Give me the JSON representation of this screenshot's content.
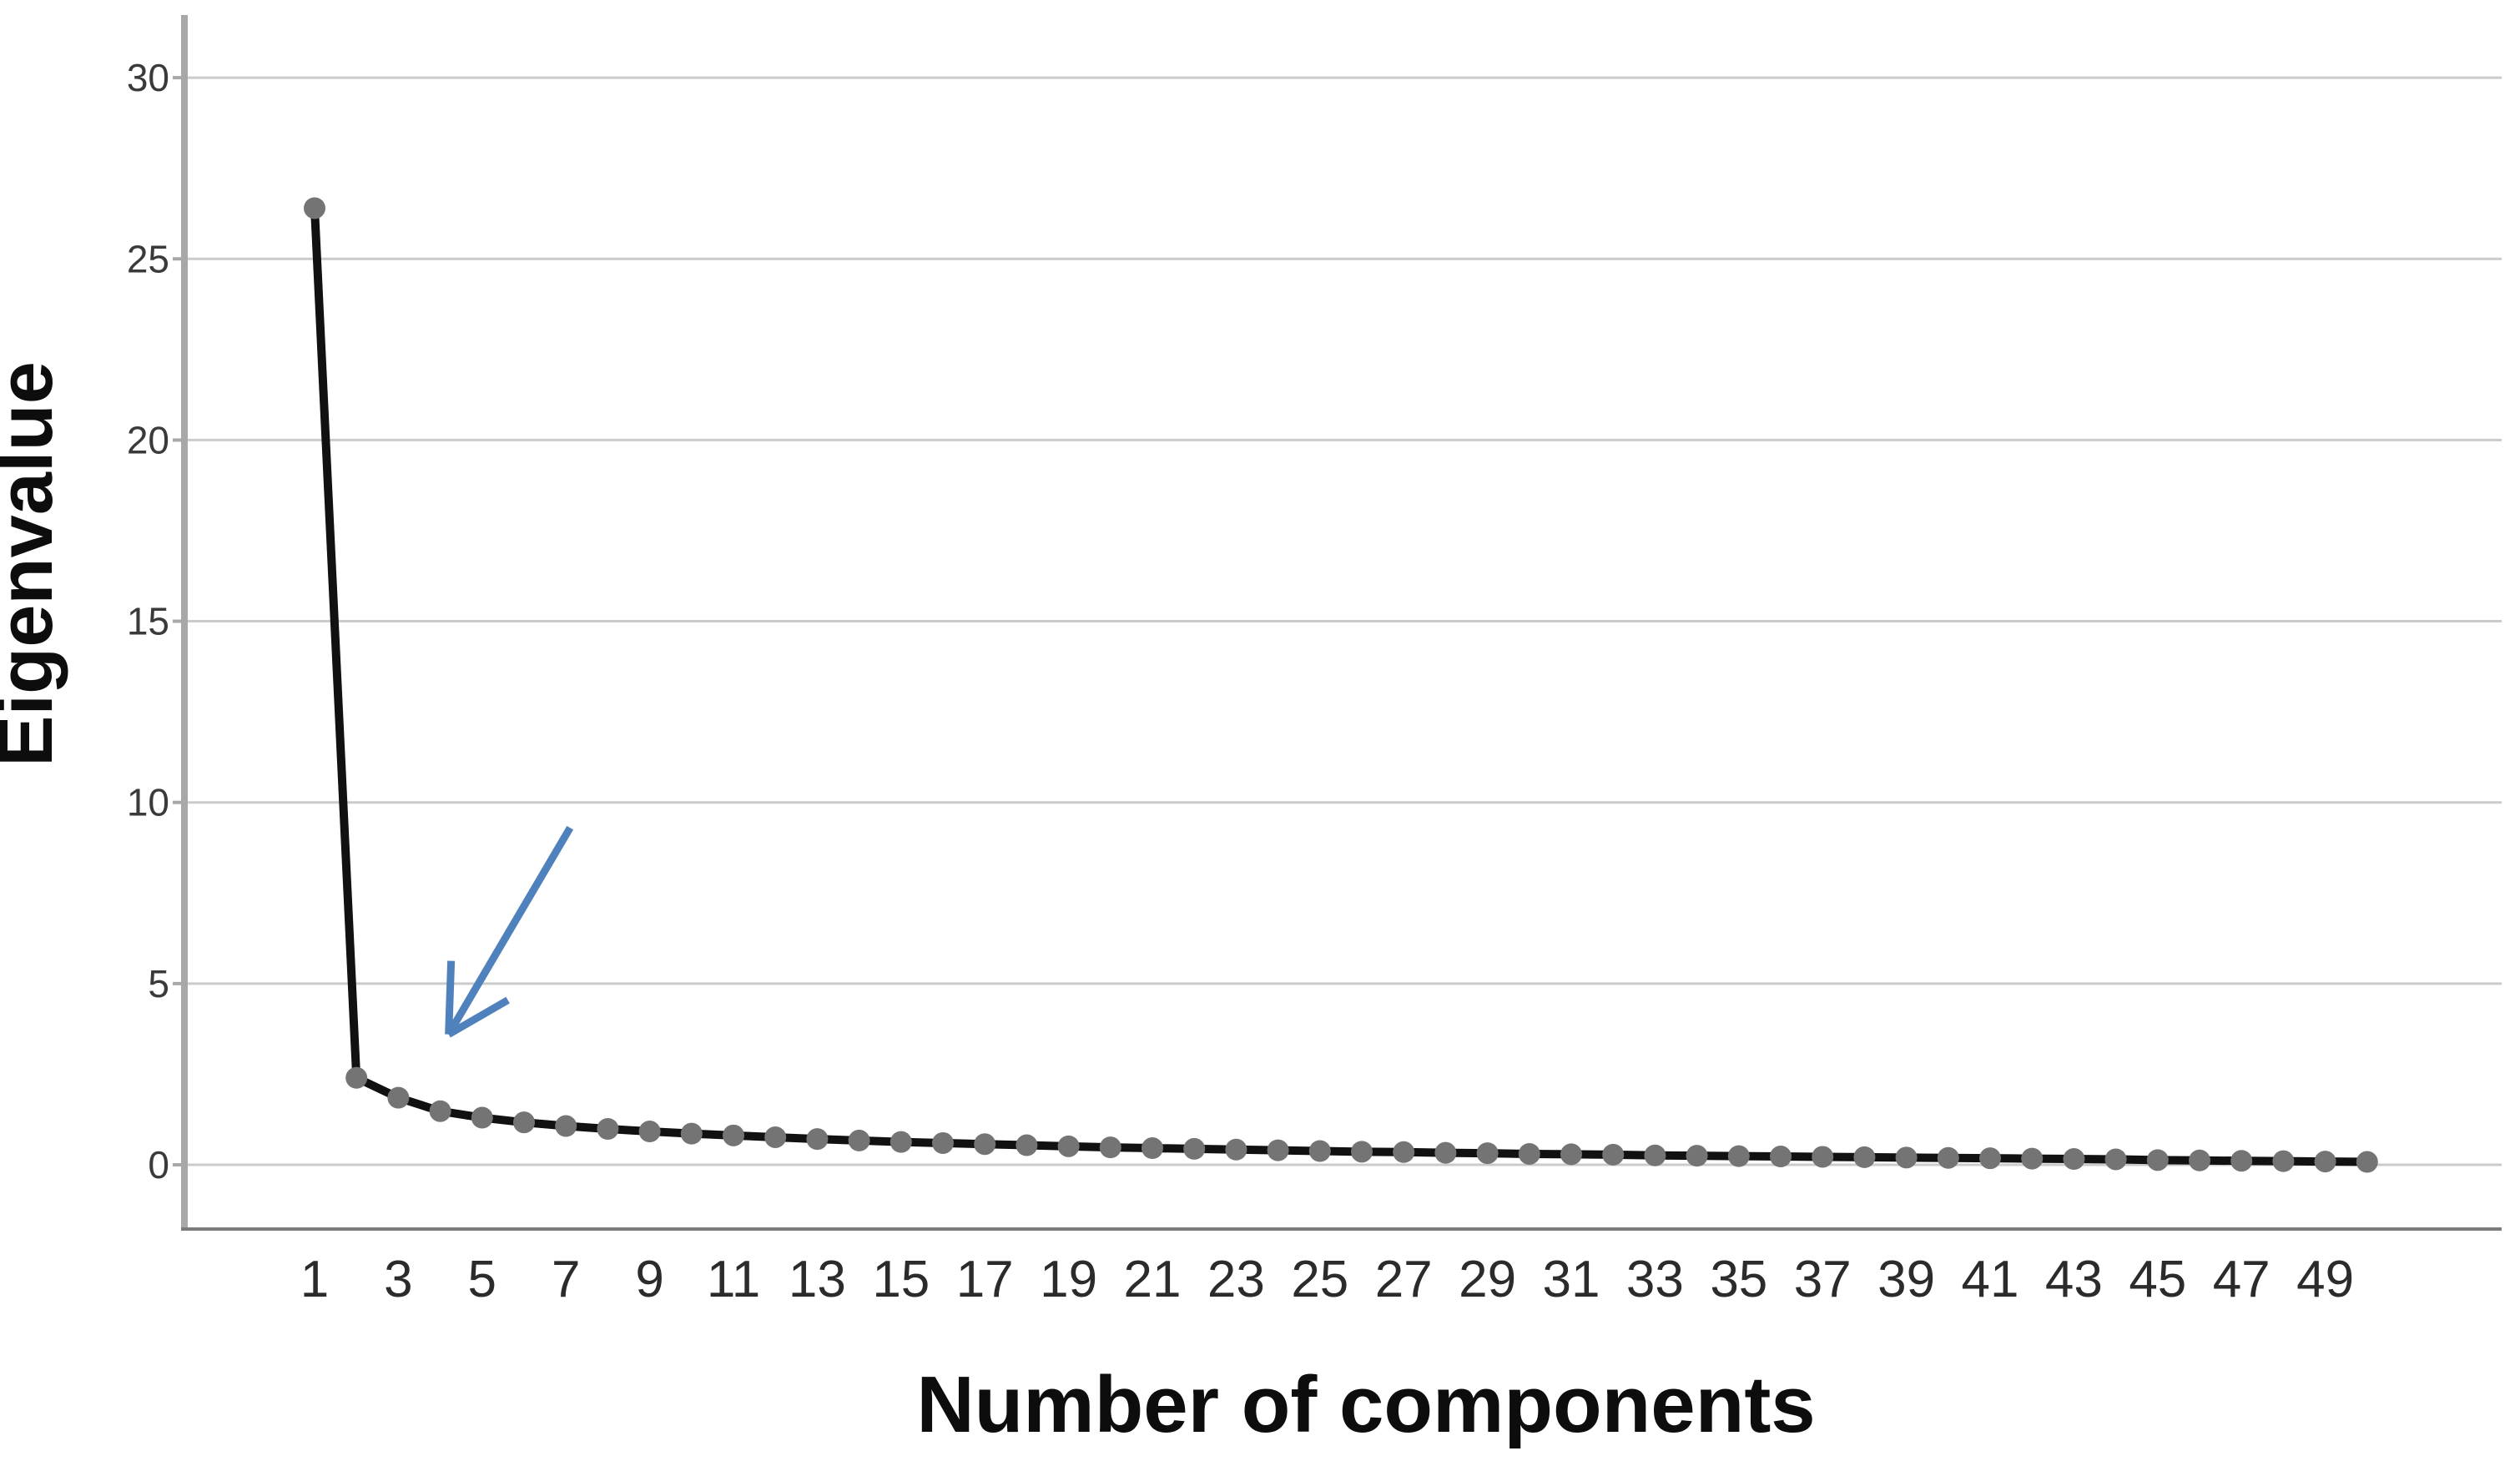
{
  "chart_data": {
    "type": "line",
    "title": "",
    "xlabel": "Number of components",
    "ylabel": "Eigenvalue",
    "x": [
      1,
      2,
      3,
      4,
      5,
      6,
      7,
      8,
      9,
      10,
      11,
      12,
      13,
      14,
      15,
      16,
      17,
      18,
      19,
      20,
      21,
      22,
      23,
      24,
      25,
      26,
      27,
      28,
      29,
      30,
      31,
      32,
      33,
      34,
      35,
      36,
      37,
      38,
      39,
      40,
      41,
      42,
      43,
      44,
      45,
      46,
      47,
      48,
      49,
      50
    ],
    "values": [
      26.4,
      2.4,
      1.85,
      1.48,
      1.3,
      1.17,
      1.07,
      0.99,
      0.92,
      0.86,
      0.81,
      0.76,
      0.71,
      0.67,
      0.63,
      0.6,
      0.57,
      0.54,
      0.51,
      0.48,
      0.46,
      0.44,
      0.42,
      0.4,
      0.38,
      0.36,
      0.35,
      0.33,
      0.32,
      0.3,
      0.29,
      0.28,
      0.26,
      0.25,
      0.24,
      0.23,
      0.22,
      0.21,
      0.2,
      0.19,
      0.18,
      0.17,
      0.16,
      0.15,
      0.13,
      0.12,
      0.11,
      0.1,
      0.09,
      0.08
    ],
    "x_tick_labels": [
      "1",
      "3",
      "5",
      "7",
      "9",
      "11",
      "13",
      "15",
      "17",
      "19",
      "21",
      "23",
      "25",
      "27",
      "29",
      "31",
      "33",
      "35",
      "37",
      "39",
      "41",
      "43",
      "45",
      "47",
      "49"
    ],
    "x_tick_values": [
      1,
      3,
      5,
      7,
      9,
      11,
      13,
      15,
      17,
      19,
      21,
      23,
      25,
      27,
      29,
      31,
      33,
      35,
      37,
      39,
      41,
      43,
      45,
      47,
      49
    ],
    "y_tick_labels": [
      "0",
      "5",
      "10",
      "15",
      "20",
      "25",
      "30"
    ],
    "y_tick_values": [
      0,
      5,
      10,
      15,
      20,
      25,
      30
    ],
    "ylim": [
      0,
      30
    ],
    "xlim": [
      1,
      50
    ],
    "grid": "horizontal",
    "legend": "none",
    "colors": {
      "line": "#111111",
      "marker": "#747474",
      "gridline": "#cbcbcb",
      "axis_bar": "#a8a8a8",
      "bottom_frame": "#7b7b7b",
      "arrow": "#4f81bd",
      "background": "#ffffff"
    },
    "annotation": {
      "name": "elbow-arrow",
      "shape": "arrow",
      "from_data": {
        "x": 7.1,
        "y": 9.3
      },
      "to_data": {
        "x": 4.2,
        "y": 3.6
      }
    }
  }
}
